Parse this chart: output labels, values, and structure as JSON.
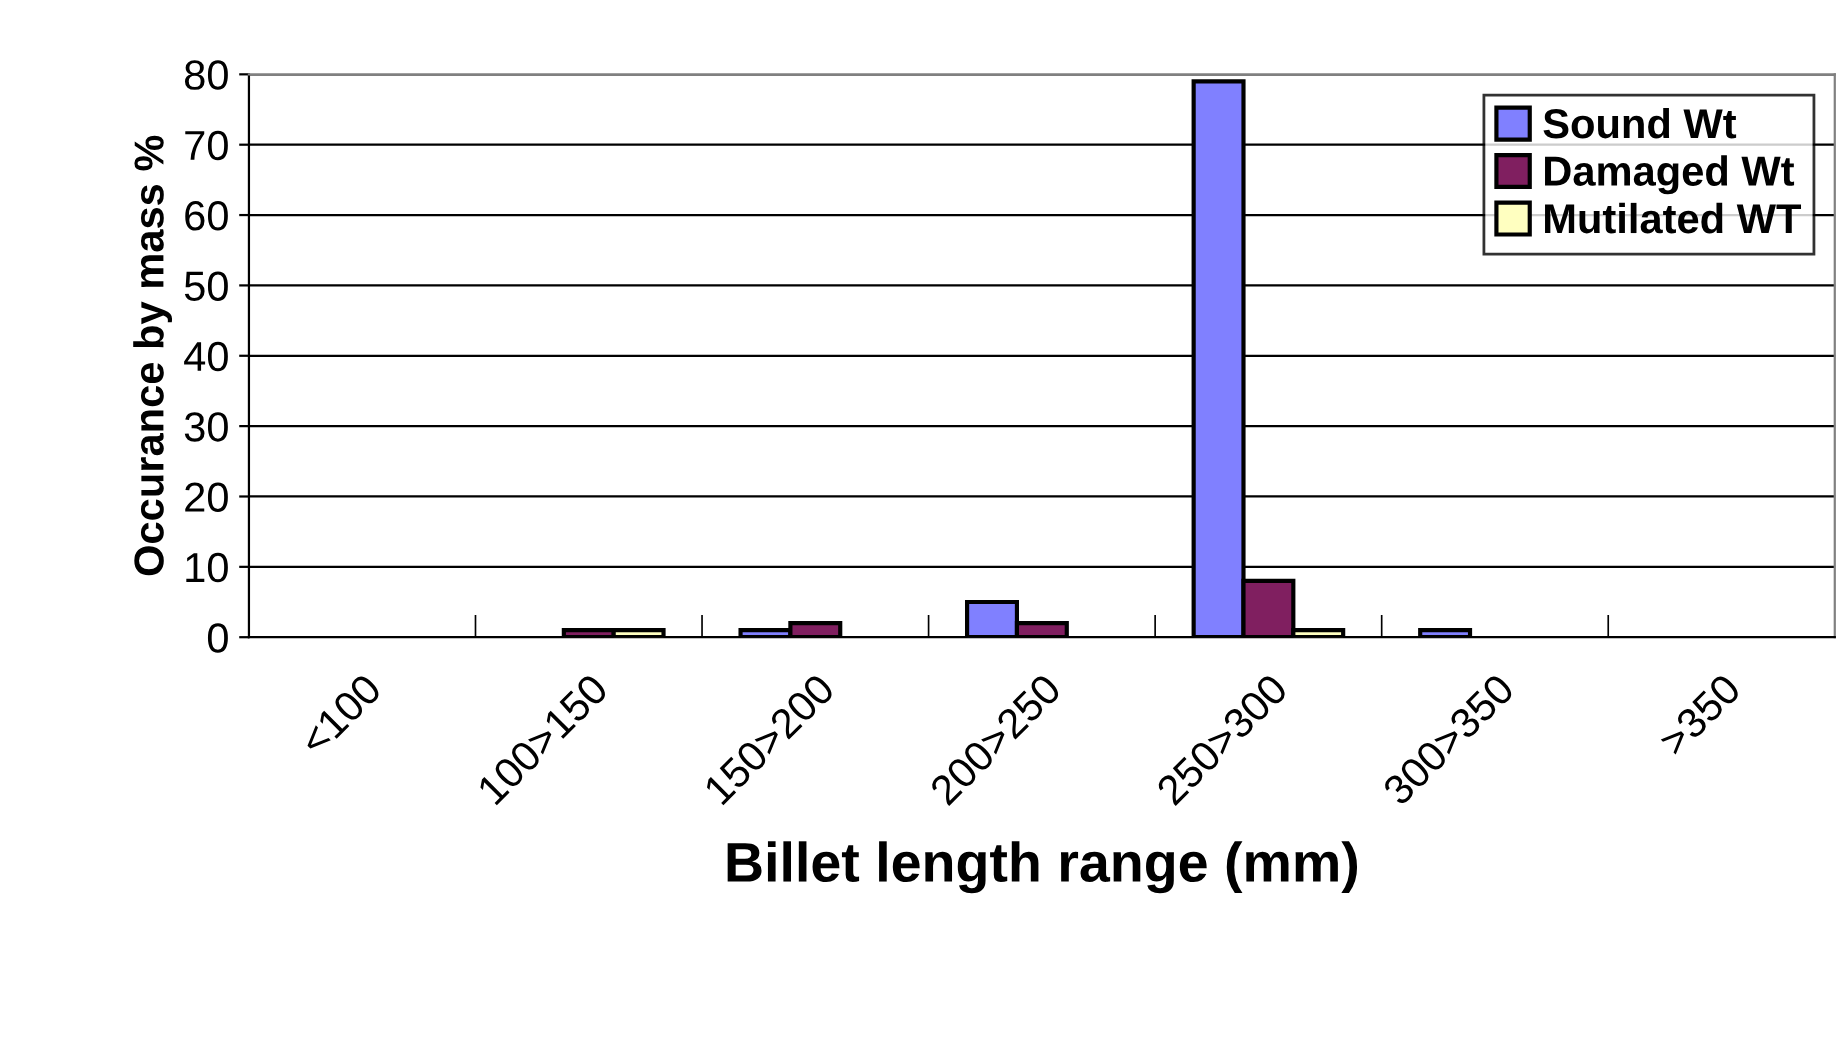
{
  "chart_data": {
    "type": "bar",
    "xlabel": "Billet length range (mm)",
    "ylabel": "Occurance by mass %",
    "categories": [
      "<100",
      "100>150",
      "150>200",
      "200>250",
      "250>300",
      "300>350",
      ">350"
    ],
    "series": [
      {
        "name": "Sound Wt",
        "color": "#8080ff",
        "values": [
          null,
          null,
          1,
          5,
          79,
          1,
          null
        ]
      },
      {
        "name": "Damaged Wt",
        "color": "#801f60",
        "values": [
          null,
          1,
          2,
          2,
          8,
          null,
          null
        ]
      },
      {
        "name": "Mutilated WT",
        "color": "#ffffc0",
        "values": [
          null,
          1,
          null,
          null,
          1,
          null,
          null
        ]
      }
    ],
    "ylim": [
      0,
      80
    ],
    "yticks": [
      0,
      10,
      20,
      30,
      40,
      50,
      60,
      70,
      80
    ],
    "grid": "y",
    "legend": "top right"
  }
}
